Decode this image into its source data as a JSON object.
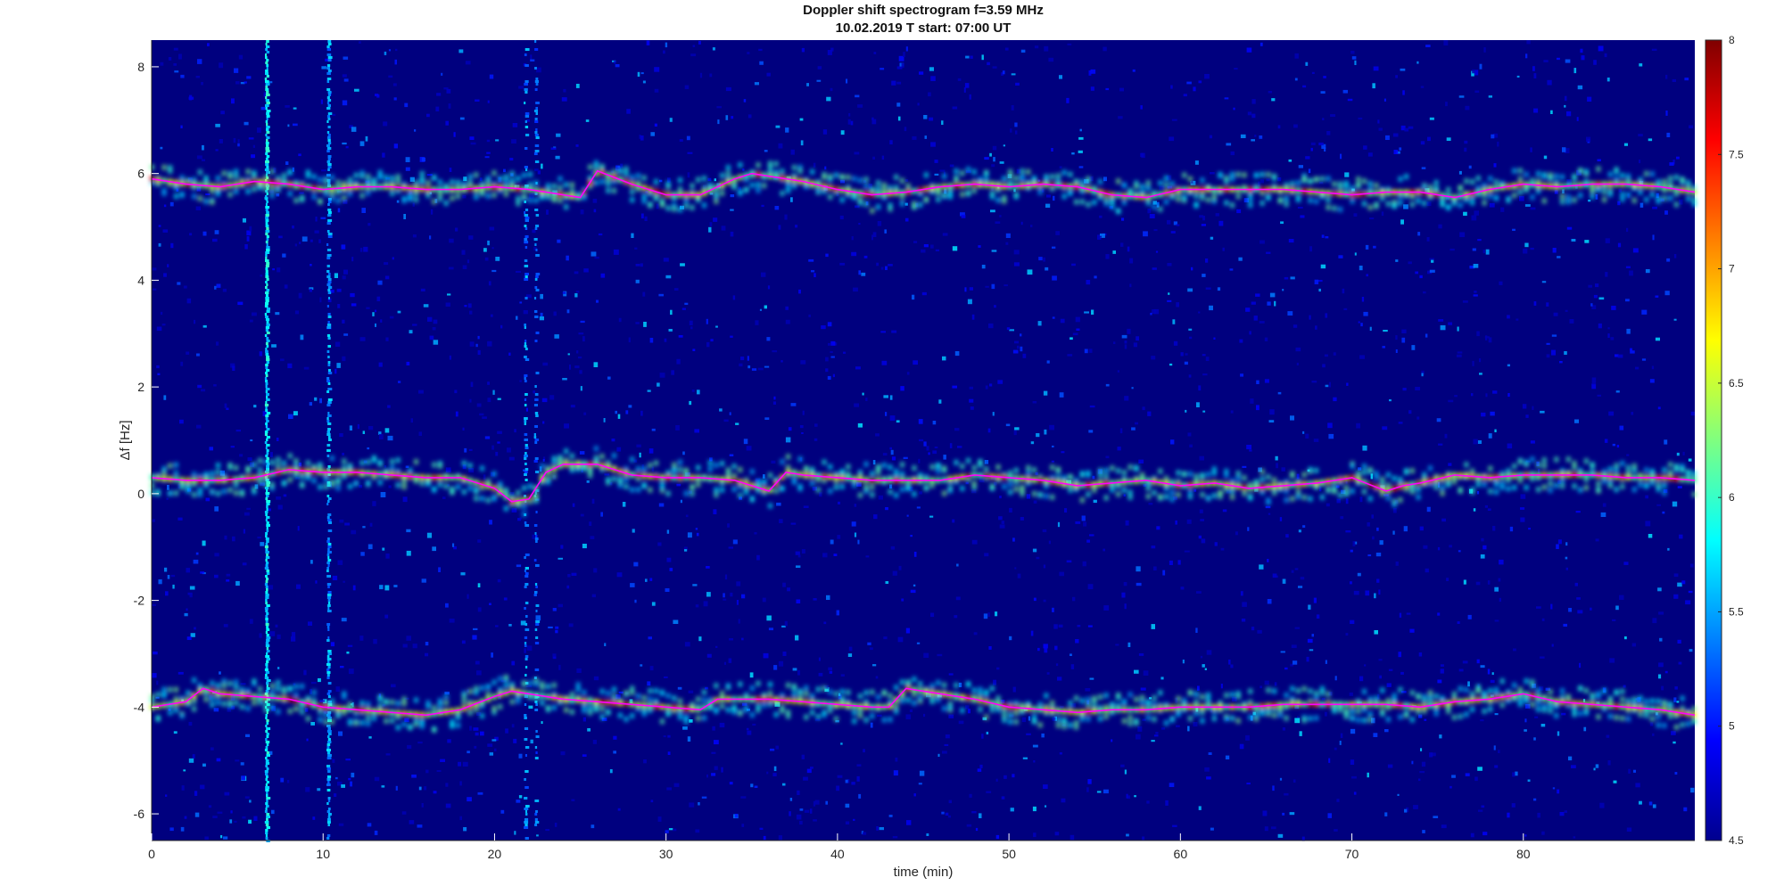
{
  "chart_data": {
    "type": "heatmap",
    "title": "Doppler shift spectrogram f=3.59 MHz",
    "subtitle": "10.02.2019   T start: 07:00 UT",
    "xlabel": "time (min)",
    "ylabel": "Δf [Hz]",
    "xlim": [
      0,
      90
    ],
    "ylim": [
      -6.5,
      8.5
    ],
    "xticks": [
      0,
      10,
      20,
      30,
      40,
      50,
      60,
      70,
      80
    ],
    "yticks": [
      -6,
      -4,
      -2,
      0,
      2,
      4,
      6,
      8
    ],
    "colorbar": {
      "colormap": "jet",
      "clim": [
        4.5,
        8
      ],
      "ticks": [
        4.5,
        5,
        5.5,
        6,
        6.5,
        7,
        7.5,
        8
      ]
    },
    "grid": false,
    "series": [
      {
        "color": "#ff00ff",
        "x": [
          0,
          2,
          4,
          6,
          8,
          10,
          12,
          14,
          16,
          18,
          20,
          22,
          24,
          25,
          26,
          28,
          30,
          32,
          34,
          35,
          36,
          38,
          40,
          42,
          44,
          46,
          48,
          50,
          52,
          54,
          56,
          58,
          60,
          62,
          64,
          66,
          68,
          70,
          72,
          74,
          76,
          78,
          80,
          82,
          84,
          86,
          88,
          90
        ],
        "values": [
          5.9,
          5.8,
          5.75,
          5.85,
          5.8,
          5.7,
          5.75,
          5.75,
          5.7,
          5.7,
          5.75,
          5.7,
          5.6,
          5.55,
          6.05,
          5.8,
          5.6,
          5.6,
          5.9,
          6.0,
          5.95,
          5.85,
          5.7,
          5.6,
          5.65,
          5.75,
          5.8,
          5.75,
          5.8,
          5.75,
          5.6,
          5.55,
          5.7,
          5.7,
          5.7,
          5.7,
          5.65,
          5.6,
          5.65,
          5.65,
          5.55,
          5.7,
          5.8,
          5.75,
          5.8,
          5.8,
          5.75,
          5.65
        ]
      },
      {
        "color": "#ff00ff",
        "x": [
          0,
          2,
          4,
          6,
          8,
          10,
          12,
          14,
          16,
          18,
          20,
          21,
          22,
          23,
          24,
          26,
          28,
          30,
          32,
          34,
          36,
          37,
          38,
          40,
          42,
          44,
          46,
          48,
          50,
          52,
          54,
          56,
          58,
          60,
          62,
          64,
          66,
          68,
          70,
          72,
          73,
          74,
          76,
          78,
          80,
          82,
          84,
          86,
          88,
          90
        ],
        "values": [
          0.3,
          0.25,
          0.25,
          0.3,
          0.45,
          0.4,
          0.4,
          0.35,
          0.3,
          0.3,
          0.1,
          -0.15,
          -0.1,
          0.4,
          0.55,
          0.55,
          0.35,
          0.3,
          0.3,
          0.25,
          0.05,
          0.4,
          0.35,
          0.3,
          0.25,
          0.25,
          0.25,
          0.35,
          0.3,
          0.25,
          0.15,
          0.2,
          0.25,
          0.15,
          0.2,
          0.1,
          0.15,
          0.2,
          0.3,
          0.05,
          0.15,
          0.2,
          0.35,
          0.3,
          0.35,
          0.35,
          0.35,
          0.3,
          0.3,
          0.25
        ]
      },
      {
        "color": "#ff00ff",
        "x": [
          0,
          2,
          3,
          4,
          6,
          8,
          10,
          12,
          14,
          16,
          18,
          20,
          21,
          22,
          24,
          26,
          28,
          30,
          32,
          33,
          34,
          36,
          38,
          40,
          42,
          43,
          44,
          46,
          48,
          50,
          52,
          54,
          56,
          58,
          60,
          62,
          64,
          66,
          68,
          70,
          72,
          74,
          76,
          78,
          80,
          82,
          84,
          86,
          88,
          90
        ],
        "values": [
          -4.0,
          -3.9,
          -3.65,
          -3.75,
          -3.8,
          -3.85,
          -4.0,
          -4.05,
          -4.1,
          -4.15,
          -4.05,
          -3.8,
          -3.7,
          -3.75,
          -3.85,
          -3.9,
          -3.95,
          -4.0,
          -4.05,
          -3.85,
          -3.85,
          -3.85,
          -3.9,
          -3.95,
          -4.0,
          -4.0,
          -3.65,
          -3.75,
          -3.85,
          -4.0,
          -4.05,
          -4.1,
          -4.05,
          -4.05,
          -4.0,
          -4.0,
          -4.0,
          -3.95,
          -3.95,
          -3.95,
          -3.95,
          -4.0,
          -3.9,
          -3.85,
          -3.75,
          -3.9,
          -3.95,
          -4.0,
          -4.05,
          -4.15
        ]
      }
    ]
  }
}
